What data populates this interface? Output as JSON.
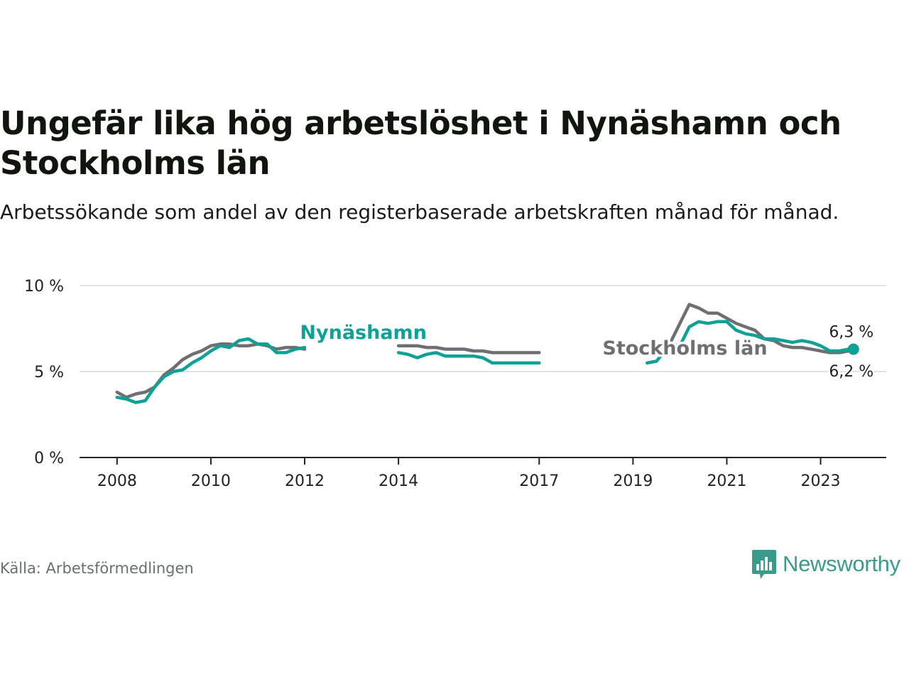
{
  "title": "Ungefär lika hög arbetslöshet i Nynäshamn och Stockholms län",
  "subtitle": "Arbetssökande som andel av den registerbaserade arbetskraften månad för månad.",
  "source": "Källa: Arbetsförmedlingen",
  "brand": {
    "name": "Newsworthy",
    "icon": "newsworthy-logo-icon",
    "color": "#3a9a8c"
  },
  "chart_data": {
    "type": "line",
    "ylim": [
      0,
      10
    ],
    "y_ticks": [
      {
        "value": 0,
        "label": "0 %"
      },
      {
        "value": 5,
        "label": "5 %"
      },
      {
        "value": 10,
        "label": "10 %"
      }
    ],
    "xlim": [
      2007.2,
      2024.4
    ],
    "x_ticks": [
      {
        "value": 2008.0,
        "label": "2008"
      },
      {
        "value": 2010.0,
        "label": "2010"
      },
      {
        "value": 2012.0,
        "label": "2012"
      },
      {
        "value": 2014.0,
        "label": "2014"
      },
      {
        "value": 2017.0,
        "label": "2017"
      },
      {
        "value": 2019.0,
        "label": "2019"
      },
      {
        "value": 2021.0,
        "label": "2021"
      },
      {
        "value": 2023.0,
        "label": "2023"
      }
    ],
    "grid": true,
    "series": [
      {
        "name": "Stockholms län",
        "color": "#6f6f73",
        "label_pos": [
          2018.35,
          6.0
        ],
        "end_label": "6,2 %",
        "x": [
          2008.0,
          2008.2,
          2008.4,
          2008.6,
          2008.8,
          2009.0,
          2009.2,
          2009.4,
          2009.6,
          2009.8,
          2010.0,
          2010.2,
          2010.4,
          2010.6,
          2010.8,
          2011.0,
          2011.2,
          2011.4,
          2011.6,
          2011.8,
          2012.0,
          2014.0,
          2014.2,
          2014.4,
          2014.6,
          2014.8,
          2015.0,
          2015.2,
          2015.4,
          2015.6,
          2015.8,
          2016.0,
          2016.2,
          2016.4,
          2016.6,
          2016.8,
          2017.0,
          2019.8,
          2020.0,
          2020.2,
          2020.4,
          2020.6,
          2020.8,
          2021.0,
          2021.2,
          2021.4,
          2021.6,
          2021.8,
          2022.0,
          2022.2,
          2022.4,
          2022.6,
          2022.8,
          2023.0,
          2023.2,
          2023.4,
          2023.6,
          2023.7
        ],
        "values": [
          3.8,
          3.5,
          3.7,
          3.8,
          4.1,
          4.8,
          5.2,
          5.7,
          6.0,
          6.2,
          6.5,
          6.6,
          6.6,
          6.5,
          6.5,
          6.6,
          6.5,
          6.3,
          6.4,
          6.4,
          6.3,
          6.5,
          6.5,
          6.5,
          6.4,
          6.4,
          6.3,
          6.3,
          6.3,
          6.2,
          6.2,
          6.1,
          6.1,
          6.1,
          6.1,
          6.1,
          6.1,
          6.7,
          7.8,
          8.9,
          8.7,
          8.4,
          8.4,
          8.1,
          7.8,
          7.6,
          7.4,
          6.9,
          6.8,
          6.5,
          6.4,
          6.4,
          6.3,
          6.2,
          6.1,
          6.1,
          6.2,
          6.2
        ]
      },
      {
        "name": "Nynäshamn",
        "color": "#0ea297",
        "label_pos": [
          2011.9,
          6.9
        ],
        "end_label": "6,3 %",
        "x": [
          2008.0,
          2008.2,
          2008.4,
          2008.6,
          2008.8,
          2009.0,
          2009.2,
          2009.4,
          2009.6,
          2009.8,
          2010.0,
          2010.2,
          2010.4,
          2010.6,
          2010.8,
          2011.0,
          2011.2,
          2011.4,
          2011.6,
          2011.8,
          2012.0,
          2014.0,
          2014.2,
          2014.4,
          2014.6,
          2014.8,
          2015.0,
          2015.2,
          2015.4,
          2015.6,
          2015.8,
          2016.0,
          2016.2,
          2016.4,
          2016.6,
          2016.8,
          2017.0,
          2019.3,
          2019.5,
          2019.8,
          2020.0,
          2020.2,
          2020.4,
          2020.6,
          2020.8,
          2021.0,
          2021.2,
          2021.4,
          2021.6,
          2021.8,
          2022.0,
          2022.2,
          2022.4,
          2022.6,
          2022.8,
          2023.0,
          2023.2,
          2023.4,
          2023.6,
          2023.7
        ],
        "values": [
          3.5,
          3.4,
          3.2,
          3.3,
          4.1,
          4.7,
          5.0,
          5.1,
          5.5,
          5.8,
          6.2,
          6.5,
          6.4,
          6.8,
          6.9,
          6.6,
          6.6,
          6.1,
          6.1,
          6.3,
          6.4,
          6.1,
          6.0,
          5.8,
          6.0,
          6.1,
          5.9,
          5.9,
          5.9,
          5.9,
          5.8,
          5.5,
          5.5,
          5.5,
          5.5,
          5.5,
          5.5,
          5.5,
          5.6,
          6.6,
          6.5,
          7.6,
          7.9,
          7.8,
          7.9,
          7.9,
          7.4,
          7.2,
          7.1,
          6.9,
          6.9,
          6.8,
          6.7,
          6.8,
          6.7,
          6.5,
          6.2,
          6.2,
          6.3,
          6.3
        ]
      }
    ]
  }
}
